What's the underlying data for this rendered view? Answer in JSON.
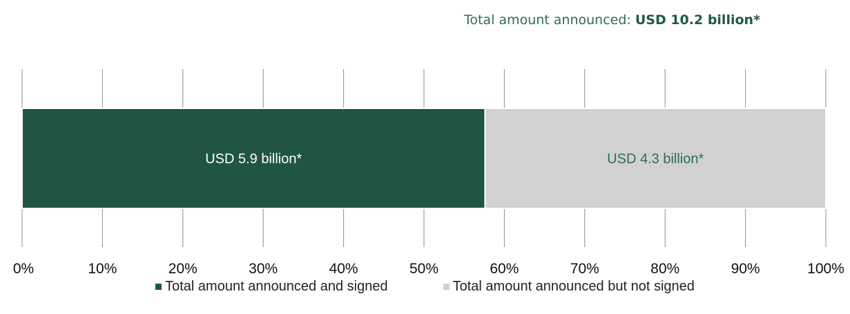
{
  "header": {
    "label": "Total amount announced:",
    "value": "USD 10.2 billion*"
  },
  "chart_data": {
    "type": "bar",
    "orientation": "horizontal-stacked-100",
    "x_ticks": [
      "0%",
      "10%",
      "20%",
      "30%",
      "40%",
      "50%",
      "60%",
      "70%",
      "80%",
      "90%",
      "100%"
    ],
    "xlim": [
      0,
      100
    ],
    "grid": true,
    "series": [
      {
        "name": "Total amount announced and signed",
        "value": 5.9,
        "percent": 57.6,
        "data_label": "USD 5.9 billion*",
        "color": "#1f5541",
        "label_color": "#ffffff"
      },
      {
        "name": "Total amount announced but not signed",
        "value": 4.3,
        "percent": 42.4,
        "data_label": "USD 4.3 billion*",
        "color": "#d1d1d1",
        "label_color": "#2e6b55"
      }
    ],
    "legend_position": "bottom"
  }
}
